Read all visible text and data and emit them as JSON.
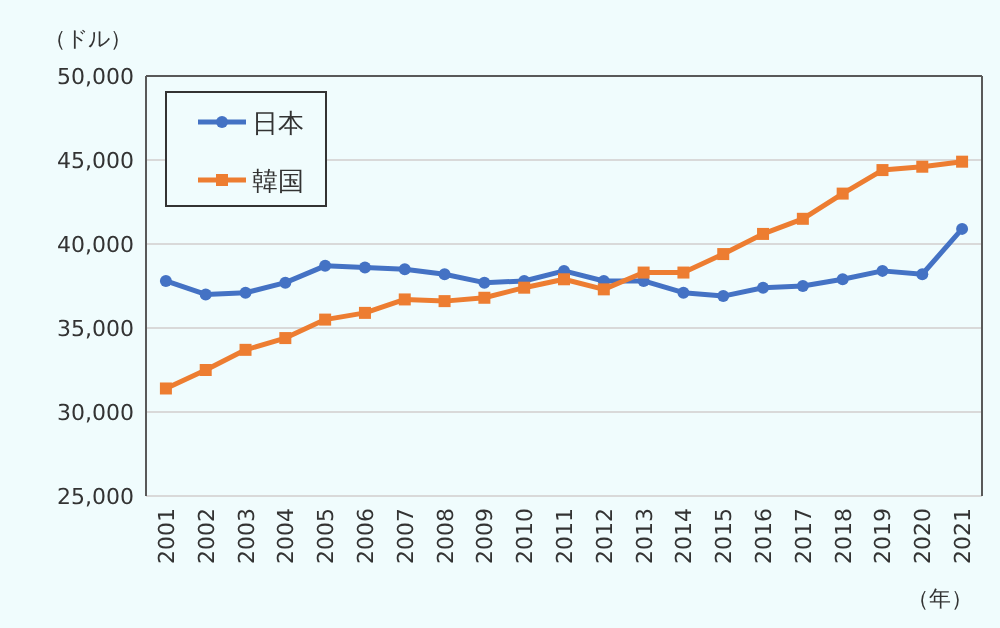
{
  "chart_data": {
    "type": "line",
    "ylabel": "（ドル）",
    "xlabel": "（年）",
    "categories": [
      "2001",
      "2002",
      "2003",
      "2004",
      "2005",
      "2006",
      "2007",
      "2008",
      "2009",
      "2010",
      "2011",
      "2012",
      "2013",
      "2014",
      "2015",
      "2016",
      "2017",
      "2018",
      "2019",
      "2020",
      "2021"
    ],
    "series": [
      {
        "name": "日本",
        "color": "#4472c4",
        "marker": "circle",
        "values": [
          37800,
          37000,
          37100,
          37700,
          38700,
          38600,
          38500,
          38200,
          37700,
          37800,
          38400,
          37800,
          37800,
          37100,
          36900,
          37400,
          37500,
          37900,
          38400,
          38200,
          40900
        ]
      },
      {
        "name": "韓国",
        "color": "#ed7d31",
        "marker": "square",
        "values": [
          31400,
          32500,
          33700,
          34400,
          35500,
          35900,
          36700,
          36600,
          36800,
          37400,
          37900,
          37300,
          38300,
          38300,
          39400,
          40600,
          41500,
          43000,
          44400,
          44600,
          44900
        ]
      }
    ],
    "ylim": [
      25000,
      50000
    ],
    "yticks": [
      {
        "value": 25000,
        "label": "25,000"
      },
      {
        "value": 30000,
        "label": "30,000"
      },
      {
        "value": 35000,
        "label": "35,000"
      },
      {
        "value": 40000,
        "label": "40,000"
      },
      {
        "value": 45000,
        "label": "45,000"
      },
      {
        "value": 50000,
        "label": "50,000"
      }
    ],
    "grid": "y",
    "legend": "top left",
    "line_style": "solid"
  }
}
